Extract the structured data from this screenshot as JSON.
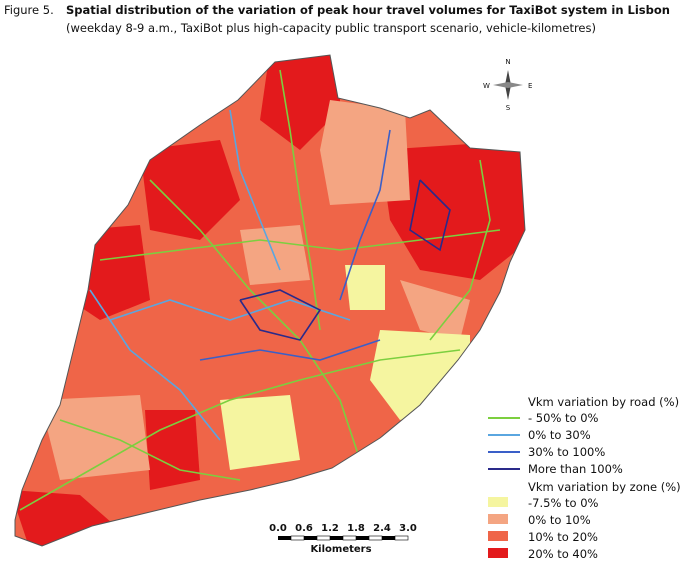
{
  "figure": {
    "label": "Figure 5.",
    "title": "Spatial distribution of the variation of peak hour travel volumes for TaxiBot system in Lisbon",
    "subtitle": "(weekday 8-9 a.m., TaxiBot plus high-capacity public transport scenario, vehicle-kilometres)"
  },
  "compass": {
    "n": "N",
    "e": "E",
    "s": "S",
    "w": "W"
  },
  "legend": {
    "road_title": "Vkm variation by road (%)",
    "road_items": [
      {
        "label": "- 50% to 0%",
        "color": "#7ccf3f"
      },
      {
        "label": "0% to 30%",
        "color": "#5aa6e0"
      },
      {
        "label": "30% to 100%",
        "color": "#3a5fc8"
      },
      {
        "label": "More than 100%",
        "color": "#2a2a8a"
      }
    ],
    "zone_title": "Vkm variation by zone (%)",
    "zone_items": [
      {
        "label": "-7.5% to 0%",
        "color": "#f5f5a0"
      },
      {
        "label": "0% to 10%",
        "color": "#f4a582"
      },
      {
        "label": "10% to 20%",
        "color": "#ef6548"
      },
      {
        "label": "20% to 40%",
        "color": "#e31a1c"
      }
    ]
  },
  "scale_bar": {
    "ticks": [
      "0.0",
      "0.6",
      "1.2",
      "1.8",
      "2.4",
      "3.0"
    ],
    "unit": "Kilometers"
  }
}
